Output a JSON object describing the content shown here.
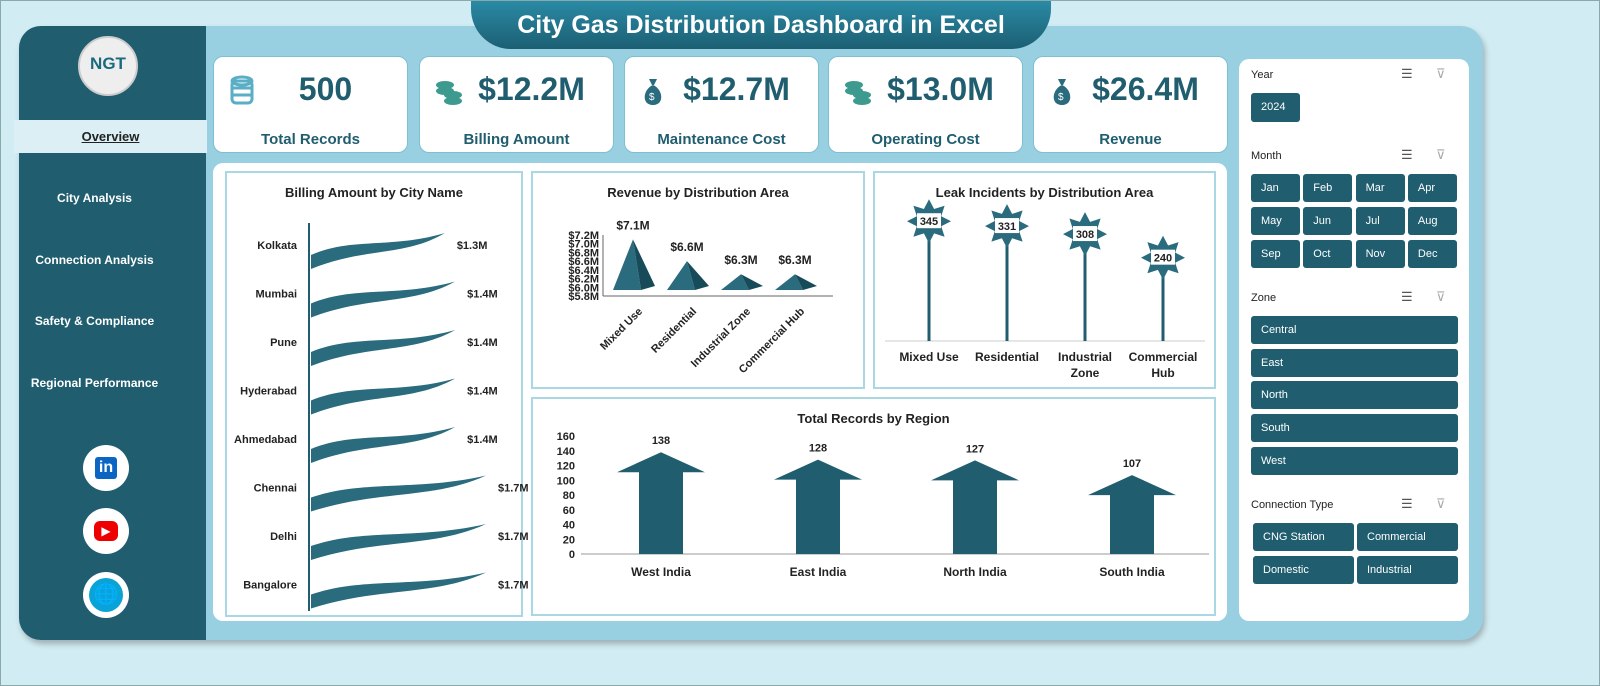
{
  "title": "City Gas Distribution Dashboard in Excel",
  "logo": "NGT",
  "nav": [
    "Overview",
    "City Analysis",
    "Connection Analysis",
    "Safety & Compliance",
    "Regional Performance"
  ],
  "social": [
    "linkedin-icon",
    "youtube-icon",
    "globe-icon"
  ],
  "kpis": [
    {
      "value": "500",
      "label": "Total Records",
      "icon": "database-icon"
    },
    {
      "value": "$12.2M",
      "label": "Billing Amount",
      "icon": "coins-icon"
    },
    {
      "value": "$12.7M",
      "label": "Maintenance Cost",
      "icon": "money-bag-icon"
    },
    {
      "value": "$13.0M",
      "label": "Operating Cost",
      "icon": "coins-icon"
    },
    {
      "value": "$26.4M",
      "label": "Revenue",
      "icon": "money-bag-icon"
    }
  ],
  "slicers": {
    "year": {
      "title": "Year",
      "items": [
        "2024"
      ]
    },
    "month": {
      "title": "Month",
      "items": [
        "Jan",
        "Feb",
        "Mar",
        "Apr",
        "May",
        "Jun",
        "Jul",
        "Aug",
        "Sep",
        "Oct",
        "Nov",
        "Dec"
      ]
    },
    "zone": {
      "title": "Zone",
      "items": [
        "Central",
        "East",
        "North",
        "South",
        "West"
      ]
    },
    "connection": {
      "title": "Connection Type",
      "items": [
        "CNG Station",
        "Commercial",
        "Domestic",
        "Industrial"
      ]
    }
  },
  "chart_data": [
    {
      "type": "bar",
      "title": "Billing Amount by City Name",
      "orientation": "horizontal",
      "categories": [
        "Kolkata",
        "Mumbai",
        "Pune",
        "Hyderabad",
        "Ahmedabad",
        "Chennai",
        "Delhi",
        "Bangalore"
      ],
      "values": [
        1.3,
        1.4,
        1.4,
        1.4,
        1.4,
        1.7,
        1.7,
        1.7
      ],
      "labels": [
        "$1.3M",
        "$1.4M",
        "$1.4M",
        "$1.4M",
        "$1.4M",
        "$1.7M",
        "$1.7M",
        "$1.7M"
      ],
      "color": "#2a6b7d"
    },
    {
      "type": "bar",
      "title": "Revenue by Distribution Area",
      "categories": [
        "Mixed Use",
        "Residential",
        "Industrial Zone",
        "Commercial Hub"
      ],
      "values": [
        7.1,
        6.6,
        6.3,
        6.3
      ],
      "labels": [
        "$7.1M",
        "$6.6M",
        "$6.3M",
        "$6.3M"
      ],
      "ylim": [
        5.8,
        7.2
      ],
      "yticks": [
        "$5.8M",
        "$6.0M",
        "$6.2M",
        "$6.4M",
        "$6.6M",
        "$6.8M",
        "$7.0M",
        "$7.2M"
      ],
      "color": "#2a6b7d"
    },
    {
      "type": "bar",
      "title": "Leak Incidents by Distribution Area",
      "categories": [
        "Mixed Use",
        "Residential",
        "Industrial Zone",
        "Commercial Hub"
      ],
      "values": [
        345,
        331,
        308,
        240
      ],
      "color": "#2a6b7d"
    },
    {
      "type": "bar",
      "title": "Total Records by Region",
      "categories": [
        "West India",
        "East India",
        "North India",
        "South India"
      ],
      "values": [
        138,
        128,
        127,
        107
      ],
      "ylim": [
        0,
        160
      ],
      "yticks": [
        "0",
        "20",
        "40",
        "60",
        "80",
        "100",
        "120",
        "140",
        "160"
      ],
      "color": "#1f5d6f"
    }
  ]
}
